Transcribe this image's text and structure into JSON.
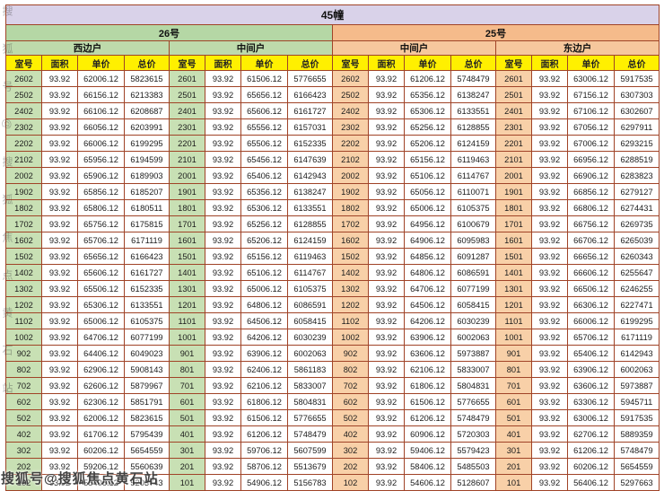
{
  "building": {
    "title": "45幢"
  },
  "sections": [
    {
      "label": "26号",
      "units": [
        "西边户",
        "中间户"
      ]
    },
    {
      "label": "25号",
      "units": [
        "中间户",
        "东边户"
      ]
    }
  ],
  "column_headers": [
    "室号",
    "面积",
    "单价",
    "总价"
  ],
  "watermark": {
    "text": "搜狐号@搜狐焦点黄石站"
  },
  "colors": {
    "title_bar": "#d9d2e9",
    "green_header": "#b5d7a5",
    "orange_header": "#f5bb8b",
    "yellow_header": "#fff000",
    "green_room_cell": "#c8e0b4",
    "orange_room_cell": "#f8d0a8",
    "grid_border": "#a04327"
  },
  "rows": [
    [
      [
        "2602",
        "93.92",
        "62006.12",
        "5823615"
      ],
      [
        "2601",
        "93.92",
        "61506.12",
        "5776655"
      ],
      [
        "2602",
        "93.92",
        "61206.12",
        "5748479"
      ],
      [
        "2601",
        "93.92",
        "63006.12",
        "5917535"
      ]
    ],
    [
      [
        "2502",
        "93.92",
        "66156.12",
        "6213383"
      ],
      [
        "2501",
        "93.92",
        "65656.12",
        "6166423"
      ],
      [
        "2502",
        "93.92",
        "65356.12",
        "6138247"
      ],
      [
        "2501",
        "93.92",
        "67156.12",
        "6307303"
      ]
    ],
    [
      [
        "2402",
        "93.92",
        "66106.12",
        "6208687"
      ],
      [
        "2401",
        "93.92",
        "65606.12",
        "6161727"
      ],
      [
        "2402",
        "93.92",
        "65306.12",
        "6133551"
      ],
      [
        "2401",
        "93.92",
        "67106.12",
        "6302607"
      ]
    ],
    [
      [
        "2302",
        "93.92",
        "66056.12",
        "6203991"
      ],
      [
        "2301",
        "93.92",
        "65556.12",
        "6157031"
      ],
      [
        "2302",
        "93.92",
        "65256.12",
        "6128855"
      ],
      [
        "2301",
        "93.92",
        "67056.12",
        "6297911"
      ]
    ],
    [
      [
        "2202",
        "93.92",
        "66006.12",
        "6199295"
      ],
      [
        "2201",
        "93.92",
        "65506.12",
        "6152335"
      ],
      [
        "2202",
        "93.92",
        "65206.12",
        "6124159"
      ],
      [
        "2201",
        "93.92",
        "67006.12",
        "6293215"
      ]
    ],
    [
      [
        "2102",
        "93.92",
        "65956.12",
        "6194599"
      ],
      [
        "2101",
        "93.92",
        "65456.12",
        "6147639"
      ],
      [
        "2102",
        "93.92",
        "65156.12",
        "6119463"
      ],
      [
        "2101",
        "93.92",
        "66956.12",
        "6288519"
      ]
    ],
    [
      [
        "2002",
        "93.92",
        "65906.12",
        "6189903"
      ],
      [
        "2001",
        "93.92",
        "65406.12",
        "6142943"
      ],
      [
        "2002",
        "93.92",
        "65106.12",
        "6114767"
      ],
      [
        "2001",
        "93.92",
        "66906.12",
        "6283823"
      ]
    ],
    [
      [
        "1902",
        "93.92",
        "65856.12",
        "6185207"
      ],
      [
        "1901",
        "93.92",
        "65356.12",
        "6138247"
      ],
      [
        "1902",
        "93.92",
        "65056.12",
        "6110071"
      ],
      [
        "1901",
        "93.92",
        "66856.12",
        "6279127"
      ]
    ],
    [
      [
        "1802",
        "93.92",
        "65806.12",
        "6180511"
      ],
      [
        "1801",
        "93.92",
        "65306.12",
        "6133551"
      ],
      [
        "1802",
        "93.92",
        "65006.12",
        "6105375"
      ],
      [
        "1801",
        "93.92",
        "66806.12",
        "6274431"
      ]
    ],
    [
      [
        "1702",
        "93.92",
        "65756.12",
        "6175815"
      ],
      [
        "1701",
        "93.92",
        "65256.12",
        "6128855"
      ],
      [
        "1702",
        "93.92",
        "64956.12",
        "6100679"
      ],
      [
        "1701",
        "93.92",
        "66756.12",
        "6269735"
      ]
    ],
    [
      [
        "1602",
        "93.92",
        "65706.12",
        "6171119"
      ],
      [
        "1601",
        "93.92",
        "65206.12",
        "6124159"
      ],
      [
        "1602",
        "93.92",
        "64906.12",
        "6095983"
      ],
      [
        "1601",
        "93.92",
        "66706.12",
        "6265039"
      ]
    ],
    [
      [
        "1502",
        "93.92",
        "65656.12",
        "6166423"
      ],
      [
        "1501",
        "93.92",
        "65156.12",
        "6119463"
      ],
      [
        "1502",
        "93.92",
        "64856.12",
        "6091287"
      ],
      [
        "1501",
        "93.92",
        "66656.12",
        "6260343"
      ]
    ],
    [
      [
        "1402",
        "93.92",
        "65606.12",
        "6161727"
      ],
      [
        "1401",
        "93.92",
        "65106.12",
        "6114767"
      ],
      [
        "1402",
        "93.92",
        "64806.12",
        "6086591"
      ],
      [
        "1401",
        "93.92",
        "66606.12",
        "6255647"
      ]
    ],
    [
      [
        "1302",
        "93.92",
        "65506.12",
        "6152335"
      ],
      [
        "1301",
        "93.92",
        "65006.12",
        "6105375"
      ],
      [
        "1302",
        "93.92",
        "64706.12",
        "6077199"
      ],
      [
        "1301",
        "93.92",
        "66506.12",
        "6246255"
      ]
    ],
    [
      [
        "1202",
        "93.92",
        "65306.12",
        "6133551"
      ],
      [
        "1201",
        "93.92",
        "64806.12",
        "6086591"
      ],
      [
        "1202",
        "93.92",
        "64506.12",
        "6058415"
      ],
      [
        "1201",
        "93.92",
        "66306.12",
        "6227471"
      ]
    ],
    [
      [
        "1102",
        "93.92",
        "65006.12",
        "6105375"
      ],
      [
        "1101",
        "93.92",
        "64506.12",
        "6058415"
      ],
      [
        "1102",
        "93.92",
        "64206.12",
        "6030239"
      ],
      [
        "1101",
        "93.92",
        "66006.12",
        "6199295"
      ]
    ],
    [
      [
        "1002",
        "93.92",
        "64706.12",
        "6077199"
      ],
      [
        "1001",
        "93.92",
        "64206.12",
        "6030239"
      ],
      [
        "1002",
        "93.92",
        "63906.12",
        "6002063"
      ],
      [
        "1001",
        "93.92",
        "65706.12",
        "6171119"
      ]
    ],
    [
      [
        "902",
        "93.92",
        "64406.12",
        "6049023"
      ],
      [
        "901",
        "93.92",
        "63906.12",
        "6002063"
      ],
      [
        "902",
        "93.92",
        "63606.12",
        "5973887"
      ],
      [
        "901",
        "93.92",
        "65406.12",
        "6142943"
      ]
    ],
    [
      [
        "802",
        "93.92",
        "62906.12",
        "5908143"
      ],
      [
        "801",
        "93.92",
        "62406.12",
        "5861183"
      ],
      [
        "802",
        "93.92",
        "62106.12",
        "5833007"
      ],
      [
        "801",
        "93.92",
        "63906.12",
        "6002063"
      ]
    ],
    [
      [
        "702",
        "93.92",
        "62606.12",
        "5879967"
      ],
      [
        "701",
        "93.92",
        "62106.12",
        "5833007"
      ],
      [
        "702",
        "93.92",
        "61806.12",
        "5804831"
      ],
      [
        "701",
        "93.92",
        "63606.12",
        "5973887"
      ]
    ],
    [
      [
        "602",
        "93.92",
        "62306.12",
        "5851791"
      ],
      [
        "601",
        "93.92",
        "61806.12",
        "5804831"
      ],
      [
        "602",
        "93.92",
        "61506.12",
        "5776655"
      ],
      [
        "601",
        "93.92",
        "63306.12",
        "5945711"
      ]
    ],
    [
      [
        "502",
        "93.92",
        "62006.12",
        "5823615"
      ],
      [
        "501",
        "93.92",
        "61506.12",
        "5776655"
      ],
      [
        "502",
        "93.92",
        "61206.12",
        "5748479"
      ],
      [
        "501",
        "93.92",
        "63006.12",
        "5917535"
      ]
    ],
    [
      [
        "402",
        "93.92",
        "61706.12",
        "5795439"
      ],
      [
        "401",
        "93.92",
        "61206.12",
        "5748479"
      ],
      [
        "402",
        "93.92",
        "60906.12",
        "5720303"
      ],
      [
        "401",
        "93.92",
        "62706.12",
        "5889359"
      ]
    ],
    [
      [
        "302",
        "93.92",
        "60206.12",
        "5654559"
      ],
      [
        "301",
        "93.92",
        "59706.12",
        "5607599"
      ],
      [
        "302",
        "93.92",
        "59406.12",
        "5579423"
      ],
      [
        "301",
        "93.92",
        "61206.12",
        "5748479"
      ]
    ],
    [
      [
        "202",
        "93.92",
        "59206.12",
        "5560639"
      ],
      [
        "201",
        "93.92",
        "58706.12",
        "5513679"
      ],
      [
        "202",
        "93.92",
        "58406.12",
        "5485503"
      ],
      [
        "201",
        "93.92",
        "60206.12",
        "5654559"
      ]
    ],
    [
      [
        "102",
        "93.92",
        "55406.12",
        "5203743"
      ],
      [
        "101",
        "93.92",
        "54906.12",
        "5156783"
      ],
      [
        "102",
        "93.92",
        "54606.12",
        "5128607"
      ],
      [
        "101",
        "93.92",
        "56406.12",
        "5297663"
      ]
    ]
  ]
}
